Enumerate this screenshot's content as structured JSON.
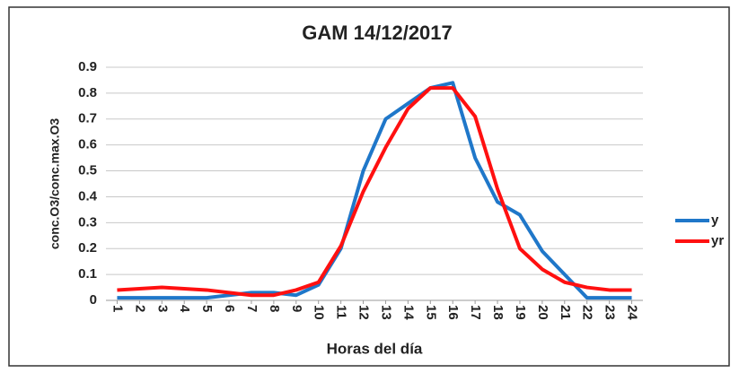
{
  "chart_data": {
    "type": "line",
    "title": "GAM  14/12/2017",
    "x_label": "Horas del día",
    "y_label": "conc.O3/conc.max.O3",
    "categories": [
      "1",
      "2",
      "3",
      "4",
      "5",
      "6",
      "7",
      "8",
      "9",
      "10",
      "11",
      "12",
      "13",
      "14",
      "15",
      "16",
      "17",
      "18",
      "19",
      "20",
      "21",
      "22",
      "23",
      "24"
    ],
    "series": [
      {
        "name": "y",
        "color": "#1f77c9",
        "values": [
          0.01,
          0.01,
          0.01,
          0.01,
          0.01,
          0.02,
          0.03,
          0.03,
          0.02,
          0.06,
          0.2,
          0.5,
          0.7,
          0.76,
          0.82,
          0.84,
          0.55,
          0.38,
          0.33,
          0.19,
          0.1,
          0.01,
          0.01,
          0.01
        ]
      },
      {
        "name": "yr",
        "color": "#ff1010",
        "values": [
          0.04,
          0.045,
          0.05,
          0.045,
          0.04,
          0.03,
          0.02,
          0.02,
          0.04,
          0.07,
          0.21,
          0.42,
          0.59,
          0.74,
          0.82,
          0.82,
          0.71,
          0.43,
          0.2,
          0.12,
          0.07,
          0.05,
          0.04,
          0.04
        ]
      }
    ],
    "ylim": [
      0,
      0.9
    ],
    "yticks": [
      0,
      0.1,
      0.2,
      0.3,
      0.4,
      0.5,
      0.6,
      0.7,
      0.8,
      0.9
    ],
    "grid": true,
    "legend": "right"
  }
}
